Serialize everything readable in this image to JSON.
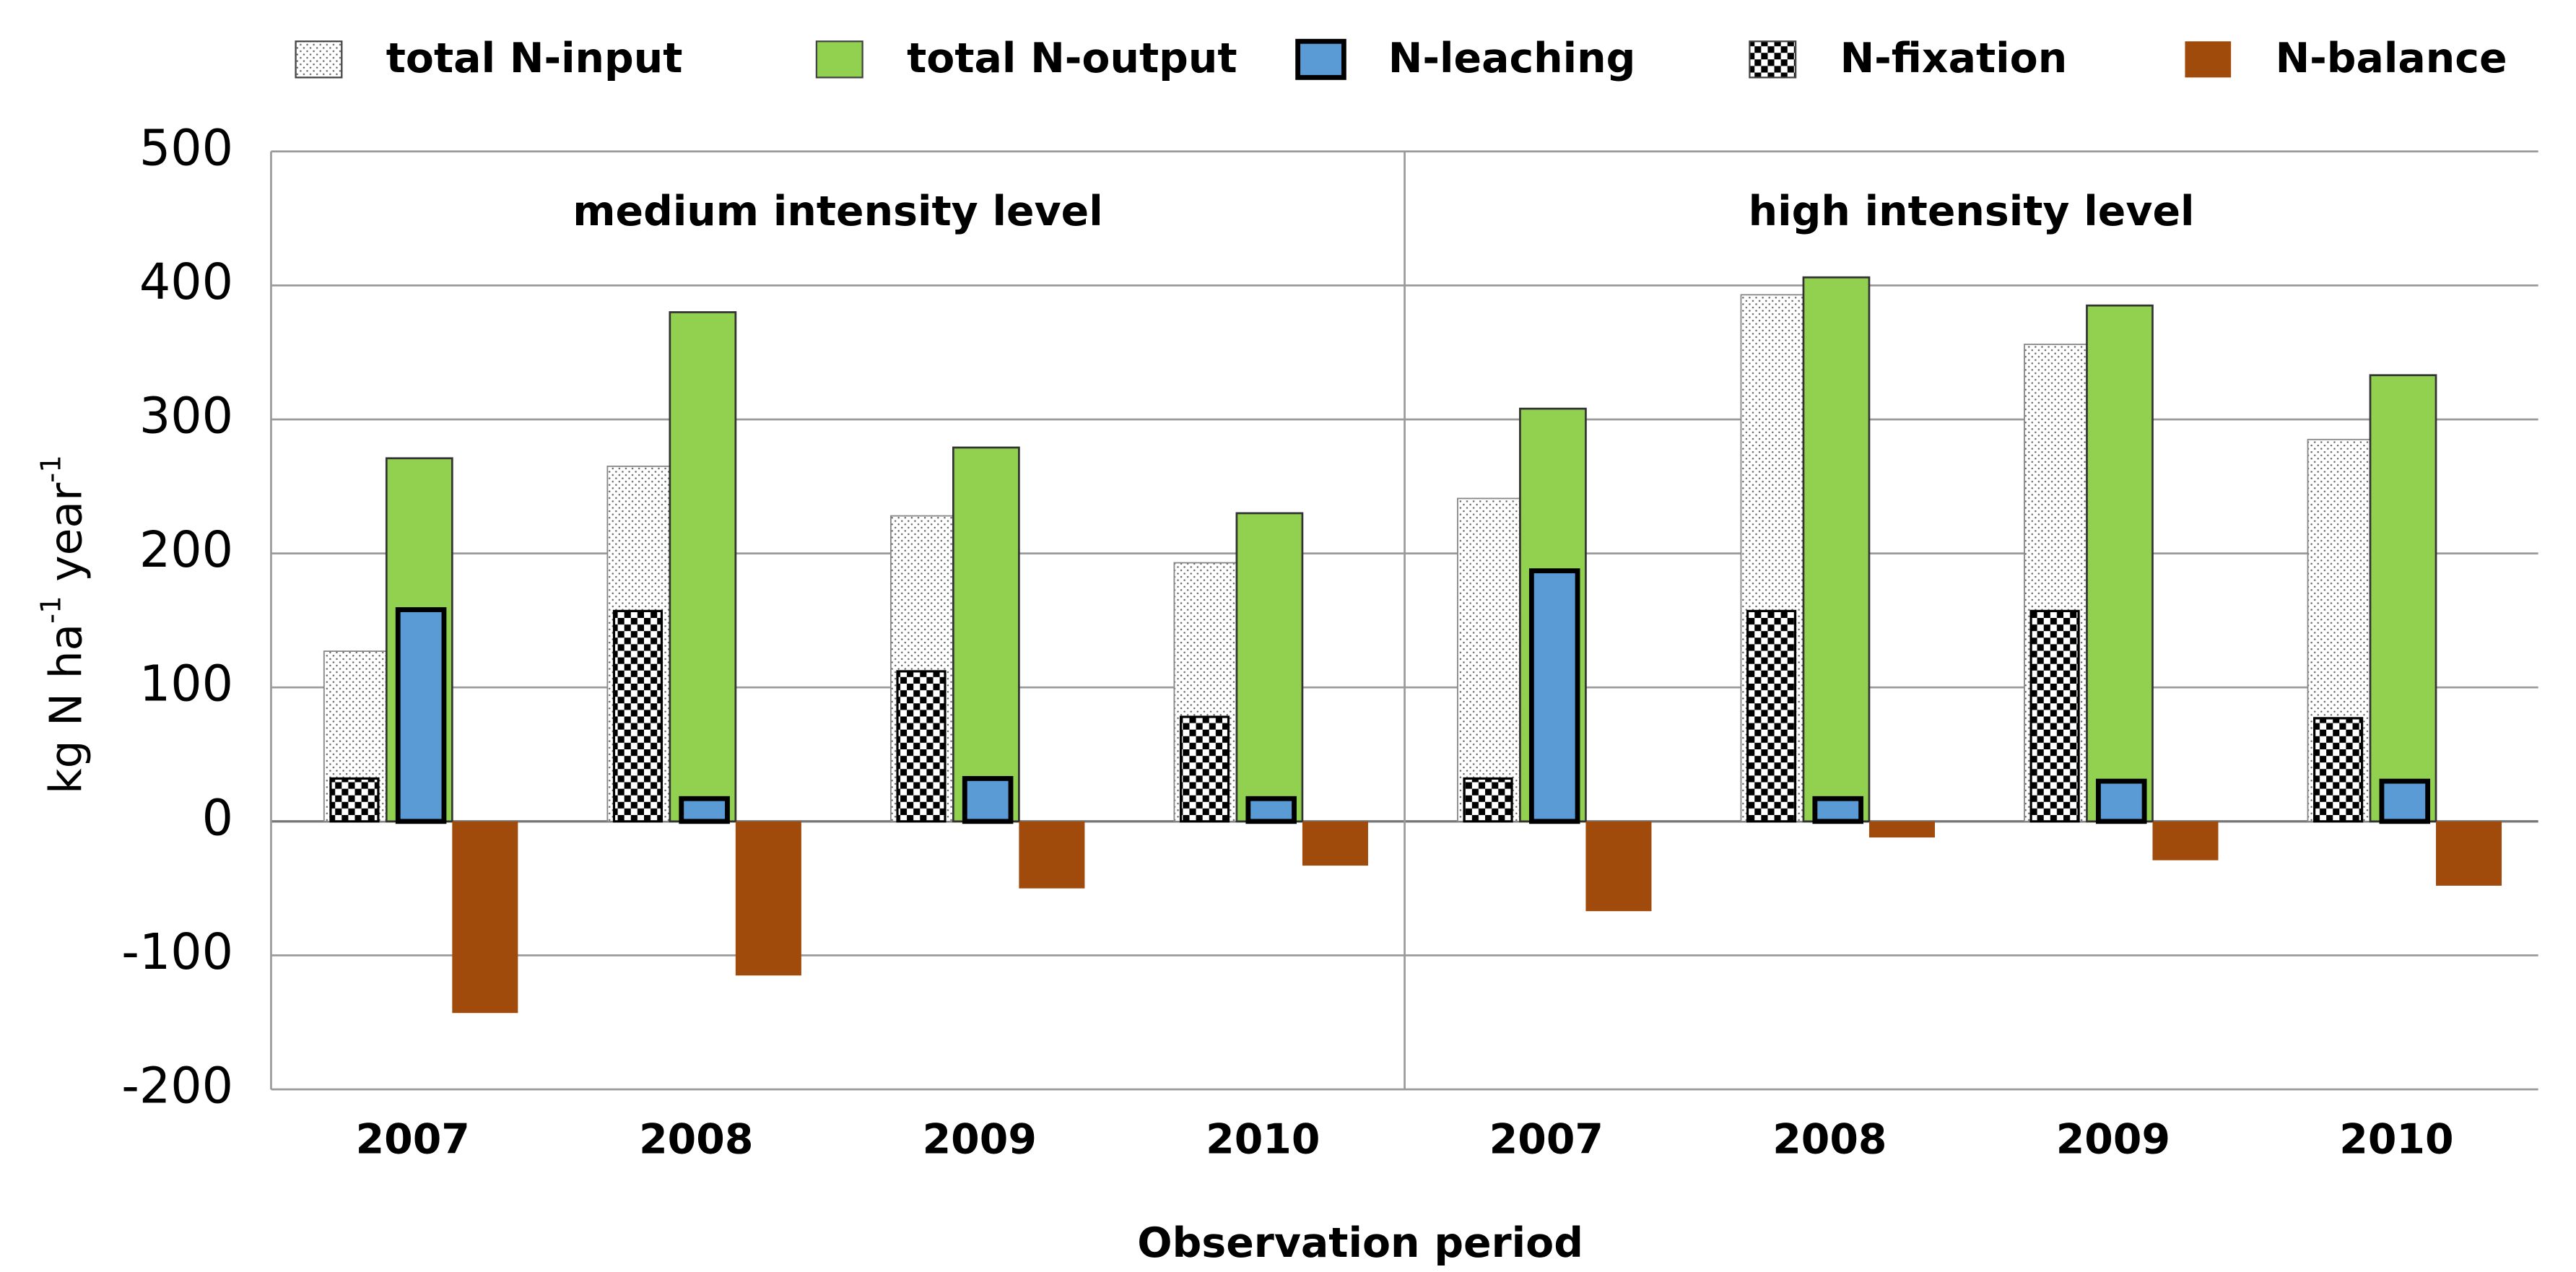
{
  "chart_data": {
    "type": "bar",
    "ylabel_parts": [
      "kg N ha",
      "-1",
      " year",
      "-1"
    ],
    "xlabel": "Observation period",
    "groups": [
      "medium intensity level",
      "high intensity level"
    ],
    "categories": [
      "2007",
      "2008",
      "2009",
      "2010",
      "2007",
      "2008",
      "2009",
      "2010"
    ],
    "series": [
      {
        "name": "total N-input",
        "color": "#ffffff",
        "pattern": "dots",
        "values": [
          127,
          265,
          228,
          193,
          241,
          393,
          356,
          285
        ]
      },
      {
        "name": "total N-output",
        "color": "#92d050",
        "values": [
          271,
          380,
          279,
          230,
          308,
          406,
          385,
          333
        ]
      },
      {
        "name": "N-leaching",
        "color": "#5b9bd5",
        "values": [
          158,
          17,
          32,
          17,
          187,
          17,
          30,
          30
        ]
      },
      {
        "name": "N-fixation",
        "color": "#ffffff",
        "pattern": "checker",
        "values": [
          32,
          157,
          112,
          78,
          32,
          157,
          157,
          77
        ]
      },
      {
        "name": "N-balance",
        "color": "#a04a0c",
        "values": [
          -143,
          -115,
          -50,
          -33,
          -67,
          -12,
          -29,
          -48
        ]
      }
    ],
    "ylim": [
      -200,
      500
    ],
    "yticks": [
      -200,
      -100,
      0,
      100,
      200,
      300,
      400,
      500
    ],
    "grid": true,
    "legend": "top"
  }
}
